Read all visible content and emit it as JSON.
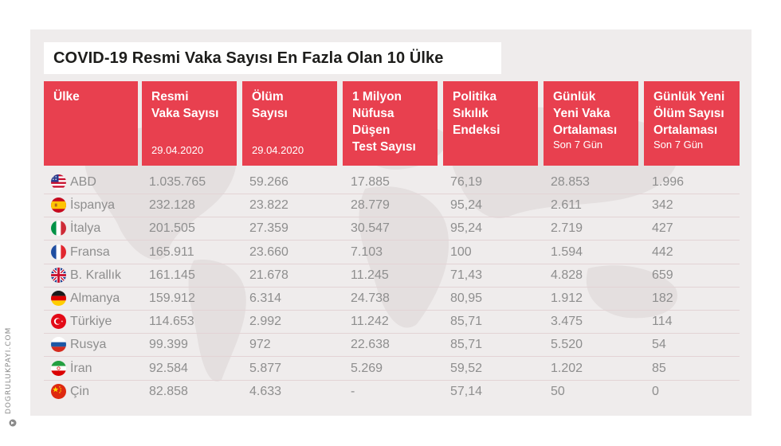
{
  "chart_data": {
    "type": "table",
    "title": "COVID-19 Resmi Vaka Sayısı En Fazla Olan 10 Ülke",
    "columns": [
      {
        "title": [
          "Ülke"
        ],
        "sub": ""
      },
      {
        "title": [
          "Resmi",
          "Vaka Sayısı"
        ],
        "sub": "29.04.2020"
      },
      {
        "title": [
          "Ölüm",
          "Sayısı"
        ],
        "sub": "29.04.2020"
      },
      {
        "title": [
          "1 Milyon",
          "Nüfusa",
          "Düşen",
          "Test Sayısı"
        ],
        "sub": ""
      },
      {
        "title": [
          "Politika",
          "Sıkılık",
          "Endeksi"
        ],
        "sub": ""
      },
      {
        "title": [
          "Günlük",
          "Yeni Vaka",
          "Ortalaması"
        ],
        "sub": "Son 7 Gün"
      },
      {
        "title": [
          "Günlük Yeni",
          "Ölüm Sayısı",
          "Ortalaması"
        ],
        "sub": "Son 7 Gün"
      }
    ],
    "rows": [
      {
        "country": "ABD",
        "flag": "us-flag-icon",
        "values": [
          "1.035.765",
          "59.266",
          "17.885",
          "76,19",
          "28.853",
          "1.996"
        ]
      },
      {
        "country": "İspanya",
        "flag": "spain-flag-icon",
        "values": [
          "232.128",
          "23.822",
          "28.779",
          "95,24",
          "2.611",
          "342"
        ]
      },
      {
        "country": "İtalya",
        "flag": "italy-flag-icon",
        "values": [
          "201.505",
          "27.359",
          "30.547",
          "95,24",
          "2.719",
          "427"
        ]
      },
      {
        "country": "Fransa",
        "flag": "france-flag-icon",
        "values": [
          "165.911",
          "23.660",
          "7.103",
          "100",
          "1.594",
          "442"
        ]
      },
      {
        "country": "B. Krallık",
        "flag": "uk-flag-icon",
        "values": [
          "161.145",
          "21.678",
          "11.245",
          "71,43",
          "4.828",
          "659"
        ]
      },
      {
        "country": "Almanya",
        "flag": "germany-flag-icon",
        "values": [
          "159.912",
          "6.314",
          "24.738",
          "80,95",
          "1.912",
          "182"
        ]
      },
      {
        "country": "Türkiye",
        "flag": "turkey-flag-icon",
        "values": [
          "114.653",
          "2.992",
          "11.242",
          "85,71",
          "3.475",
          "114"
        ]
      },
      {
        "country": "Rusya",
        "flag": "russia-flag-icon",
        "values": [
          "99.399",
          "972",
          "22.638",
          "85,71",
          "5.520",
          "54"
        ]
      },
      {
        "country": "İran",
        "flag": "iran-flag-icon",
        "values": [
          "92.584",
          "5.877",
          "5.269",
          "59,52",
          "1.202",
          "85"
        ]
      },
      {
        "country": "Çin",
        "flag": "china-flag-icon",
        "values": [
          "82.858",
          "4.633",
          "-",
          "57,14",
          "50",
          "0"
        ]
      }
    ]
  },
  "side_label": "DOGRULUKPAYI.COM",
  "colors": {
    "header_bg": "#e8404f",
    "panel_bg": "#efecec",
    "text_muted": "#8e8e8e",
    "title_text": "#1d1d1b"
  }
}
